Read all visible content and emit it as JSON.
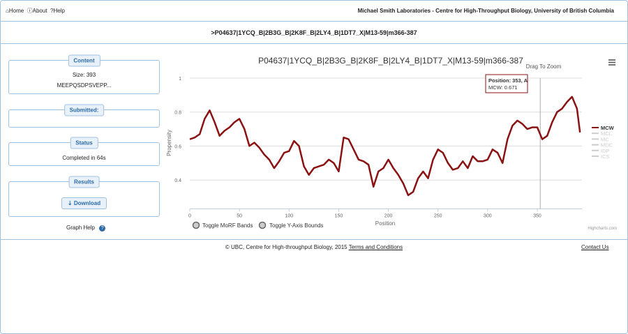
{
  "header": {
    "nav": [
      "Home",
      "About",
      "Help"
    ],
    "lab": "Michael Smith Laboratories - Centre for High-Throughput Biology, University of British Columbia"
  },
  "page_title": ">P04637|1YCQ_B|2B3G_B|2K8F_B|2LY4_B|1DT7_X|M13-59|m366-387",
  "sidebar": {
    "content": {
      "label": "Content",
      "size": "Size: 393",
      "sequence": "MEEPQSDPSVEPP..."
    },
    "submitted": {
      "label": "Submitted:"
    },
    "status": {
      "label": "Status",
      "text": "Completed in 64s"
    },
    "results": {
      "label": "Results",
      "button": "Download"
    },
    "graph_help": "Graph Help"
  },
  "footer": {
    "text": "© UBC, Centre for High-throughput Biology, 2015",
    "terms": "Terms and Conditions",
    "contact": "Contact Us"
  },
  "chart_data": {
    "type": "line",
    "title": "P04637|1YCQ_B|2B3G_B|2K8F_B|2LY4_B|1DT7_X|M13-59|m366-387",
    "zoom_hint": "Drag To Zoom",
    "x_label": "Position",
    "y_label": "Propensity",
    "x": [
      0,
      5,
      10,
      15,
      20,
      25,
      30,
      35,
      40,
      45,
      50,
      55,
      60,
      65,
      70,
      75,
      80,
      85,
      90,
      95,
      100,
      105,
      110,
      115,
      120,
      125,
      130,
      135,
      140,
      145,
      150,
      155,
      160,
      165,
      170,
      175,
      180,
      185,
      190,
      195,
      200,
      205,
      210,
      215,
      220,
      225,
      230,
      235,
      240,
      245,
      250,
      255,
      260,
      265,
      270,
      275,
      280,
      285,
      290,
      295,
      300,
      305,
      310,
      315,
      320,
      325,
      330,
      335,
      340,
      345,
      350,
      355,
      360,
      365,
      370,
      375,
      380,
      385,
      390,
      393
    ],
    "series": [
      {
        "name": "MCW",
        "color": "#8b1212",
        "values": [
          0.64,
          0.65,
          0.67,
          0.76,
          0.81,
          0.74,
          0.66,
          0.69,
          0.71,
          0.74,
          0.76,
          0.7,
          0.6,
          0.62,
          0.59,
          0.55,
          0.52,
          0.47,
          0.51,
          0.56,
          0.57,
          0.63,
          0.6,
          0.48,
          0.43,
          0.47,
          0.48,
          0.49,
          0.52,
          0.5,
          0.45,
          0.65,
          0.64,
          0.58,
          0.52,
          0.51,
          0.49,
          0.36,
          0.45,
          0.47,
          0.52,
          0.47,
          0.43,
          0.38,
          0.31,
          0.33,
          0.41,
          0.45,
          0.41,
          0.52,
          0.58,
          0.56,
          0.5,
          0.46,
          0.47,
          0.51,
          0.47,
          0.54,
          0.51,
          0.51,
          0.52,
          0.58,
          0.56,
          0.5,
          0.64,
          0.72,
          0.75,
          0.73,
          0.7,
          0.71,
          0.71,
          0.64,
          0.66,
          0.74,
          0.8,
          0.82,
          0.86,
          0.89,
          0.82,
          0.68
        ]
      }
    ],
    "hidden_series": [
      "MCL",
      "MC",
      "MDC",
      "IDP",
      "ICS"
    ],
    "legend": "right",
    "xlim": [
      0,
      395
    ],
    "xticks": [
      0,
      50,
      100,
      150,
      200,
      250,
      300,
      350
    ],
    "ylim": [
      0.23,
      1
    ],
    "yticks": [
      0.4,
      0.6,
      0.8,
      1
    ],
    "grid": true,
    "crosshair_x": 353,
    "tooltip": {
      "title": "Position: 353, A",
      "text": "MCW: 0.671"
    },
    "toggles": [
      "Toggle MoRF Bands",
      "Toggle Y-Axis Bounds"
    ],
    "credit": "Highcharts.com"
  }
}
